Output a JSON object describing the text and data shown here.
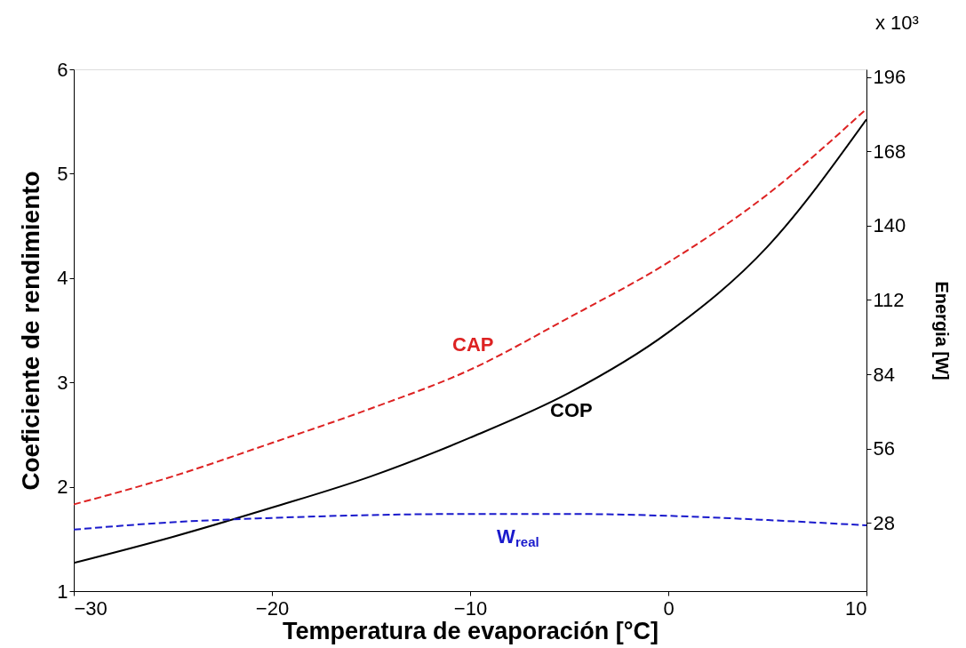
{
  "chart_data": {
    "type": "line",
    "xlabel": "Temperatura de evaporación [°C]",
    "ylabel": "Coeficiente de rendimiento",
    "y2label": "Energia [W]",
    "annotations": [
      "x 10³"
    ],
    "x": [
      -30,
      -25,
      -20,
      -15,
      -10,
      -5,
      0,
      5,
      10
    ],
    "xlim": [
      -30,
      10
    ],
    "xticks": [
      -30,
      -20,
      -10,
      0,
      10
    ],
    "ylim": [
      1,
      6
    ],
    "yticks": [
      1,
      2,
      3,
      4,
      5,
      6
    ],
    "y2lim": [
      2.2,
      199
    ],
    "y2ticks": [
      28,
      56,
      84,
      112,
      140,
      168,
      196
    ],
    "grid": false,
    "legend": false,
    "marker": "none",
    "series": [
      {
        "name": "CAP",
        "color": "#dd2222",
        "axis": "y2",
        "line_style": "dashed",
        "values": [
          34.9,
          45.5,
          58.1,
          71.1,
          85.7,
          105.4,
          126.2,
          151.8,
          184.1
        ]
      },
      {
        "name": "COP",
        "color": "#000000",
        "axis": "y",
        "line_style": "solid",
        "values": [
          1.27,
          1.52,
          1.8,
          2.1,
          2.47,
          2.9,
          3.48,
          4.3,
          5.52
        ]
      },
      {
        "name": "W$_{real}$",
        "color": "#1a1acc",
        "axis": "y2",
        "line_style": "dashed",
        "values": [
          25.4,
          28.2,
          29.8,
          30.9,
          31.3,
          31.3,
          30.6,
          29.0,
          27.0
        ]
      }
    ]
  }
}
